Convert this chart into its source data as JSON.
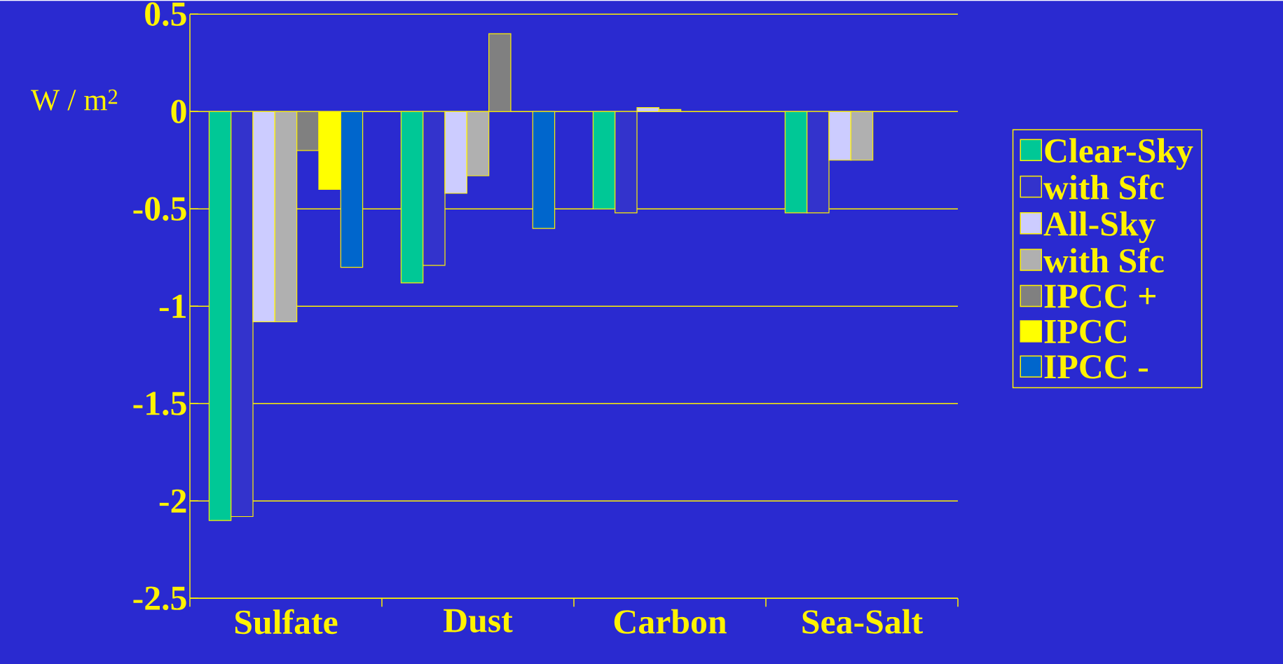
{
  "chart_data": {
    "type": "bar",
    "ylabel": "W / m$^{2}$",
    "categories": [
      "Sulfate",
      "Dust",
      "Carbon",
      "Sea-Salt"
    ],
    "series": [
      {
        "name": "Clear-Sky",
        "color": "#00c896",
        "values": [
          -2.1,
          -0.88,
          -0.5,
          -0.52
        ]
      },
      {
        "name": "with Sfc",
        "color": "#3333cc",
        "values": [
          -2.08,
          -0.79,
          -0.52,
          -0.52
        ]
      },
      {
        "name": "All-Sky",
        "color": "#ccccff",
        "values": [
          -1.08,
          -0.42,
          0.02,
          -0.25
        ]
      },
      {
        "name": "with Sfc",
        "color": "#b0b0b0",
        "values": [
          -1.08,
          -0.33,
          0.01,
          -0.25
        ]
      },
      {
        "name": "IPCC +",
        "color": "#808080",
        "values": [
          -0.2,
          0.4,
          null,
          null
        ]
      },
      {
        "name": "IPCC",
        "color": "#ffff00",
        "values": [
          -0.4,
          null,
          null,
          null
        ]
      },
      {
        "name": "IPCC -",
        "color": "#0066cc",
        "values": [
          -0.8,
          -0.6,
          null,
          null
        ]
      }
    ],
    "ylim": [
      -2.5,
      0.5
    ],
    "yticks": [
      -2.5,
      -2,
      -1.5,
      -1,
      -0.5,
      0,
      0.5
    ],
    "grid": "y",
    "legend": "right"
  }
}
